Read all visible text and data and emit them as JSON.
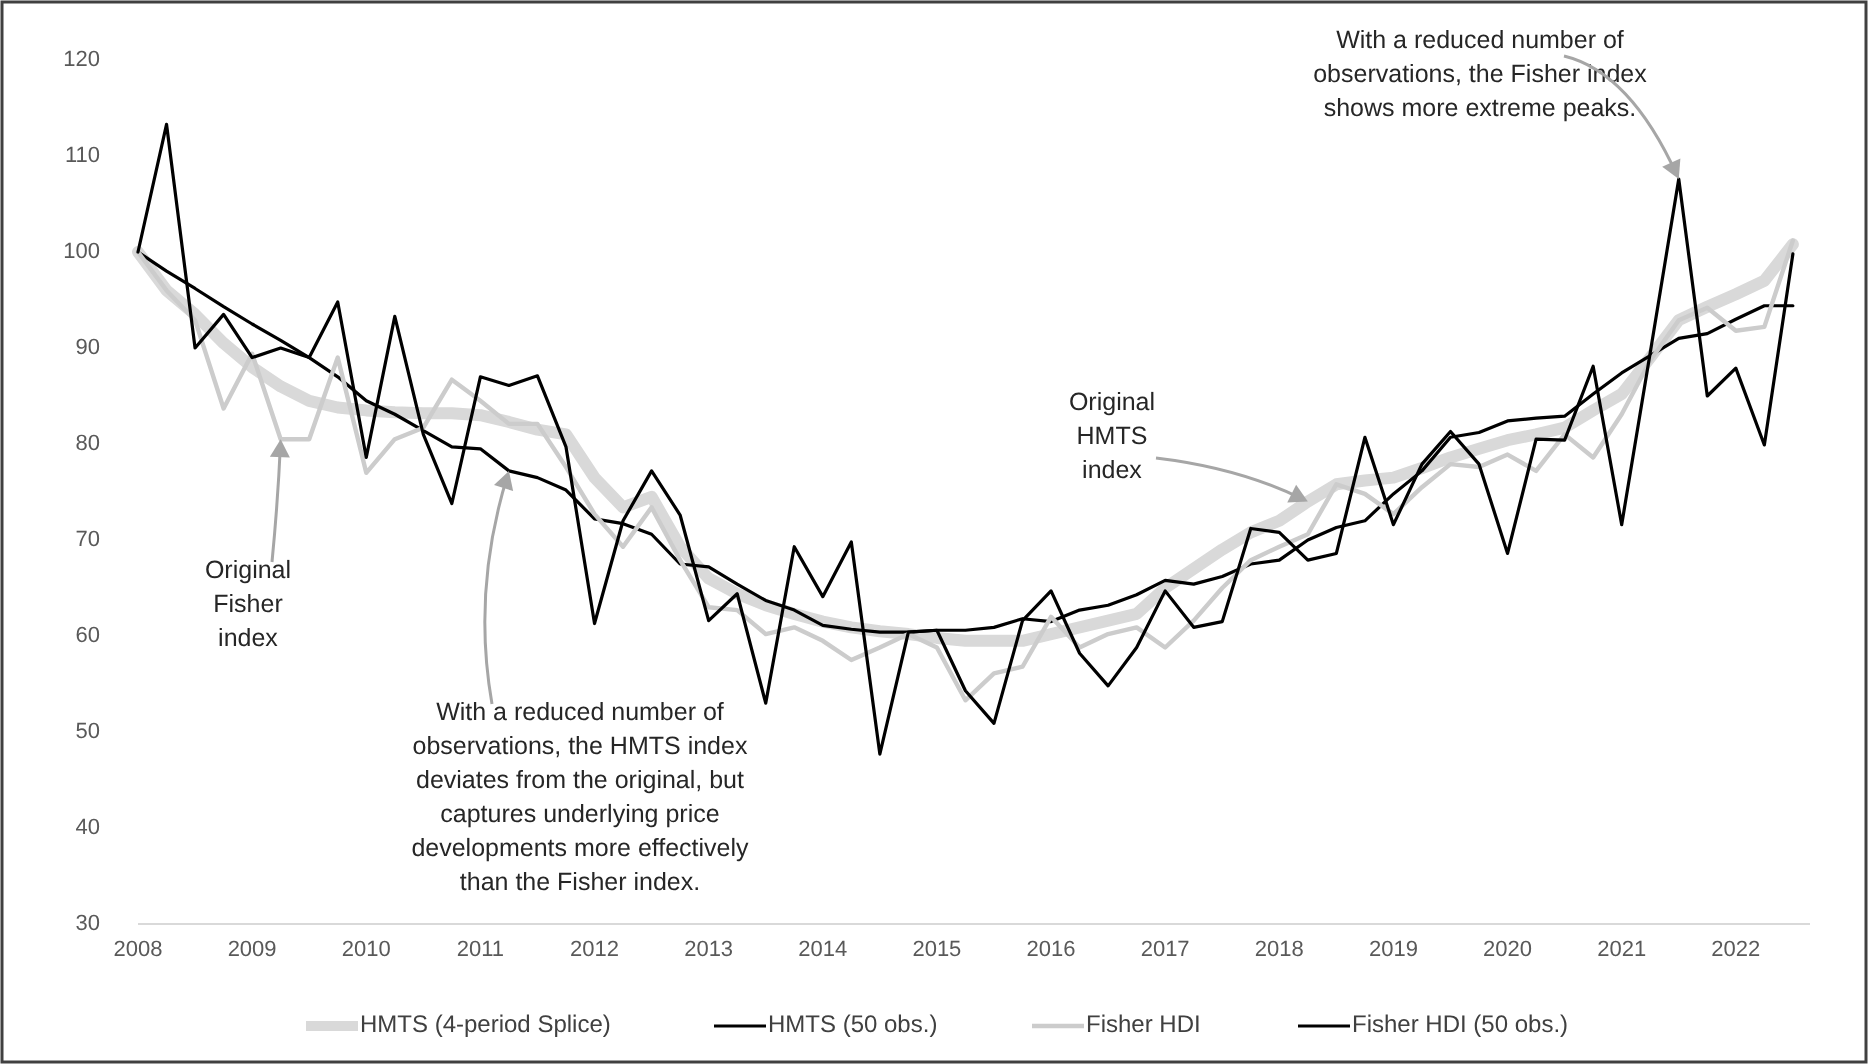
{
  "chart_data": {
    "type": "line",
    "x": [
      2008,
      2008.25,
      2008.5,
      2008.75,
      2009,
      2009.25,
      2009.5,
      2009.75,
      2010,
      2010.25,
      2010.5,
      2010.75,
      2011,
      2011.25,
      2011.5,
      2011.75,
      2012,
      2012.25,
      2012.5,
      2012.75,
      2013,
      2013.25,
      2013.5,
      2013.75,
      2014,
      2014.25,
      2014.5,
      2014.75,
      2015,
      2015.25,
      2015.5,
      2015.75,
      2016,
      2016.25,
      2016.5,
      2016.75,
      2017,
      2017.25,
      2017.5,
      2017.75,
      2018,
      2018.25,
      2018.5,
      2018.75,
      2019,
      2019.25,
      2019.5,
      2019.75,
      2020,
      2020.25,
      2020.5,
      2020.75,
      2021,
      2021.25,
      2021.5,
      2021.75,
      2022,
      2022.25,
      2022.5
    ],
    "series": [
      {
        "name": "HMTS (4-period Splice)",
        "color": "#d9d9d9",
        "values": [
          100,
          96,
          93.5,
          90.5,
          88,
          86,
          84.5,
          83.8,
          83.5,
          83.3,
          83.2,
          83.2,
          83,
          82.3,
          81.5,
          81,
          76.5,
          73.4,
          74.5,
          69.3,
          66,
          64.4,
          63.2,
          62.3,
          61.5,
          60.9,
          60.5,
          60.2,
          59.8,
          59.5,
          59.5,
          59.5,
          60.2,
          60.9,
          61.6,
          62.3,
          65,
          67,
          69,
          70.8,
          72,
          74,
          75.8,
          76.2,
          76.5,
          77.5,
          78.6,
          79.5,
          80.4,
          81,
          81.7,
          83.5,
          85.2,
          89,
          92.9,
          94.3,
          95.6,
          97,
          100.8
        ]
      },
      {
        "name": "HMTS (50 obs.)",
        "color": "#000000",
        "values": [
          100,
          98,
          96.2,
          94.3,
          92.5,
          90.8,
          89,
          87,
          84.5,
          83.1,
          81.4,
          79.7,
          79.5,
          77.2,
          76.5,
          75.2,
          72.2,
          71.7,
          70.6,
          67.5,
          67.2,
          65.4,
          63.7,
          62.7,
          61.1,
          60.7,
          60.4,
          60.4,
          60.6,
          60.6,
          60.9,
          61.8,
          61.5,
          62.7,
          63.2,
          64.3,
          65.8,
          65.4,
          66.2,
          67.5,
          67.9,
          70,
          71.3,
          72,
          74.8,
          77.2,
          80.7,
          81.2,
          82.4,
          82.7,
          82.9,
          85.2,
          87.4,
          89.2,
          91,
          91.5,
          93,
          94.4,
          94.4
        ]
      },
      {
        "name": "Fisher HDI",
        "color": "#cccccc",
        "values": [
          100,
          96,
          92.9,
          83.7,
          89.4,
          80.5,
          80.5,
          89,
          77,
          80.5,
          81.7,
          86.7,
          84.5,
          82.1,
          82.1,
          77.6,
          72.7,
          69.3,
          73.4,
          67.9,
          63,
          62.7,
          60.2,
          60.9,
          59.5,
          57.5,
          58.8,
          60.2,
          58.8,
          53.3,
          56.1,
          56.8,
          62,
          58.8,
          60.2,
          60.9,
          58.8,
          61.6,
          65,
          67.9,
          69.3,
          70.6,
          75.8,
          74.8,
          72.7,
          75.5,
          77.9,
          77.6,
          78.9,
          77.2,
          81,
          78.6,
          83.1,
          88.7,
          92.9,
          94.2,
          91.8,
          92.2,
          101.2
        ]
      },
      {
        "name": "Fisher HDI (50 obs.)",
        "color": "#000000",
        "values": [
          100,
          113.3,
          90,
          93.5,
          89,
          90,
          89,
          94.8,
          78.6,
          93.3,
          81,
          73.8,
          87,
          86.1,
          87.1,
          79.7,
          61.3,
          72,
          77.2,
          72.6,
          61.6,
          64.4,
          53,
          69.3,
          64.1,
          69.8,
          47.7,
          60.4,
          60.6,
          54.3,
          50.9,
          61.6,
          64.7,
          58.2,
          54.8,
          58.8,
          64.7,
          60.9,
          61.5,
          71.2,
          70.8,
          67.9,
          68.6,
          80.7,
          71.6,
          77.9,
          81.3,
          77.9,
          68.6,
          80.5,
          80.4,
          88.1,
          71.6,
          89.5,
          107.6,
          85,
          87.9,
          79.9,
          99.8
        ]
      }
    ],
    "xlim": [
      2008,
      2022.65
    ],
    "xticks": [
      2008,
      2009,
      2010,
      2011,
      2012,
      2013,
      2014,
      2015,
      2016,
      2017,
      2018,
      2019,
      2020,
      2021,
      2022
    ],
    "ylim": [
      30,
      120
    ],
    "yticks": [
      30,
      40,
      50,
      60,
      70,
      80,
      90,
      100,
      110,
      120
    ],
    "grid": false,
    "legend": "bottom",
    "marker": "none",
    "line_style": "solid",
    "annotations": [
      {
        "text": "Original\nFisher\nindex",
        "x": 2009.25,
        "y": 80.5
      },
      {
        "text": "With a reduced number of\nobservations, the HMTS index\ndeviates from the original, but\ncaptures underlying price\ndevelopments more effectively\nthan the Fisher index.",
        "x": 2011.25,
        "y": 77.2
      },
      {
        "text": "Original\nHMTS\nindex",
        "x": 2018.25,
        "y": 74
      },
      {
        "text": "With a reduced number of\nobservations, the Fisher index\nshows more extreme peaks.",
        "x": 2021.5,
        "y": 107.6
      }
    ]
  }
}
